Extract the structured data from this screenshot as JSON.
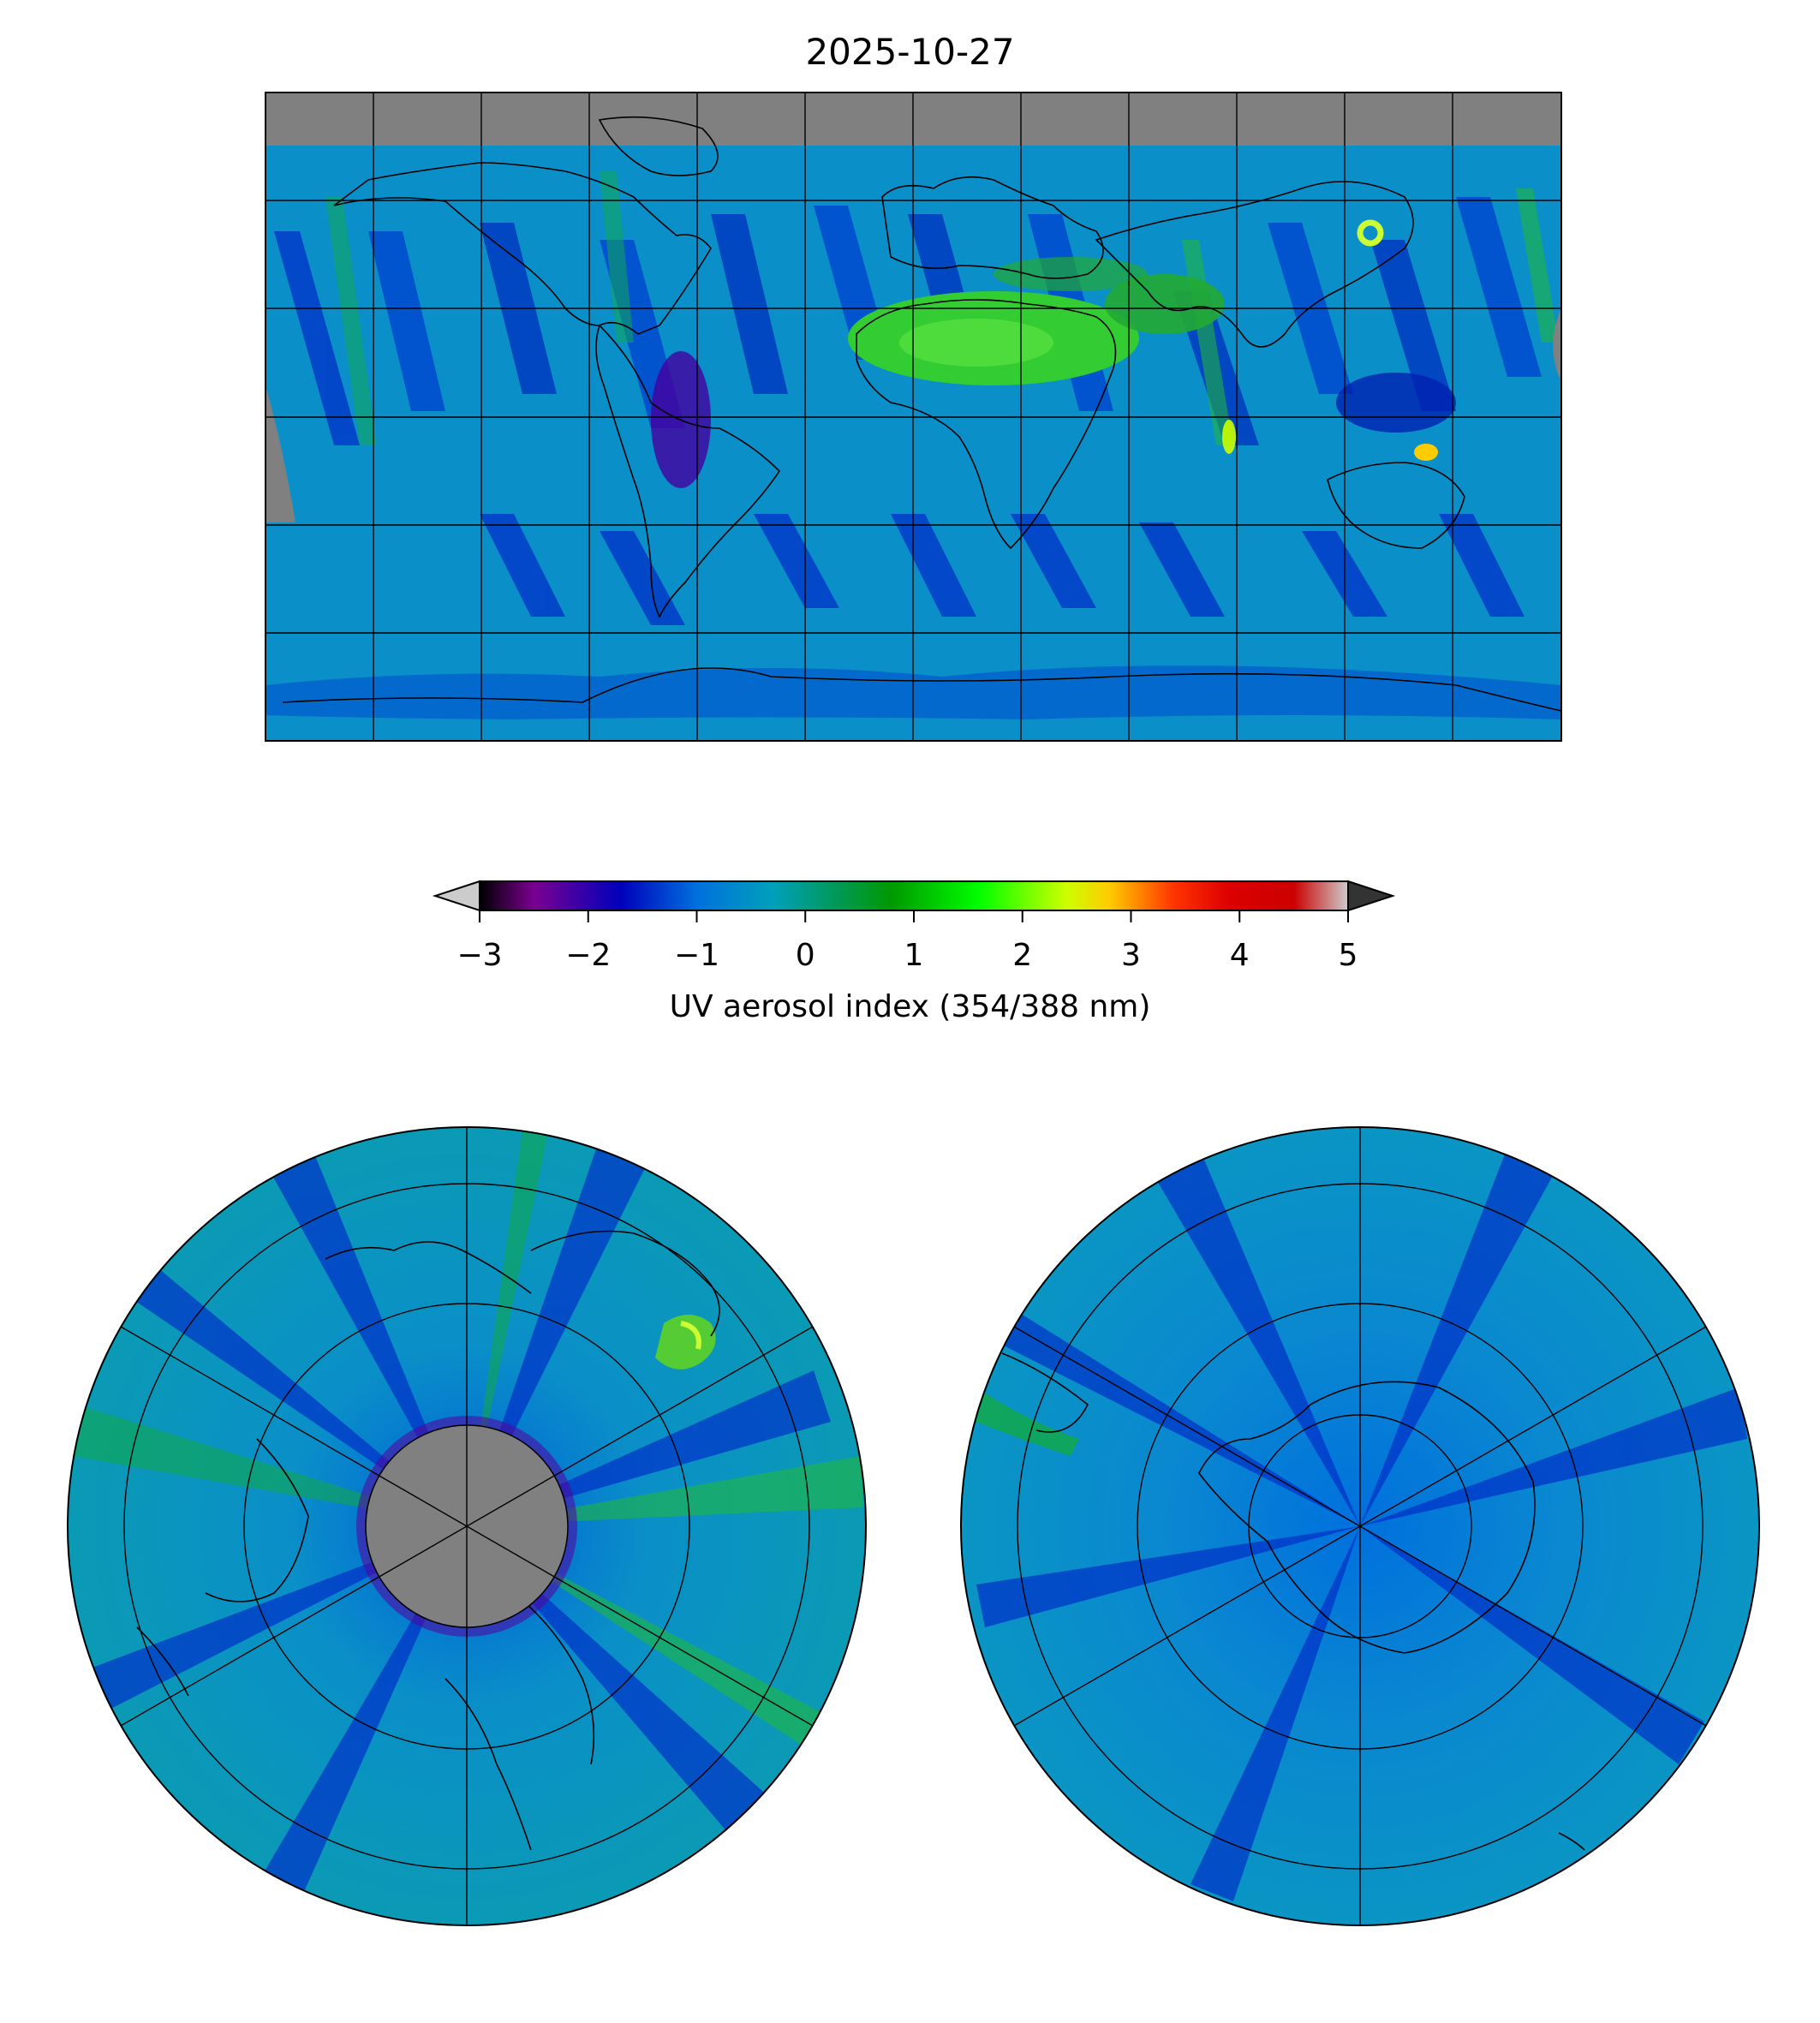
{
  "figure": {
    "title": "2025-10-27"
  },
  "colorbar": {
    "label": "UV aerosol index (354/388 nm)",
    "ticks": [
      "−3",
      "−2",
      "−1",
      "0",
      "1",
      "2",
      "3",
      "4",
      "5"
    ],
    "tick_values": [
      -3,
      -2,
      -1,
      0,
      1,
      2,
      3,
      4,
      5
    ],
    "range": [
      -3,
      5
    ],
    "extend": "both",
    "colormap_stops": [
      {
        "value": -3.0,
        "color": "#000000"
      },
      {
        "value": -2.5,
        "color": "#7a0090"
      },
      {
        "value": -1.7,
        "color": "#0000bb"
      },
      {
        "value": -1.0,
        "color": "#0070dd"
      },
      {
        "value": -0.3,
        "color": "#00a0bb"
      },
      {
        "value": 0.3,
        "color": "#009955"
      },
      {
        "value": 0.8,
        "color": "#009900"
      },
      {
        "value": 1.6,
        "color": "#00ff00"
      },
      {
        "value": 2.4,
        "color": "#ccff00"
      },
      {
        "value": 2.8,
        "color": "#ffcc00"
      },
      {
        "value": 3.4,
        "color": "#ff3300"
      },
      {
        "value": 3.9,
        "color": "#dd0000"
      },
      {
        "value": 4.5,
        "color": "#cc0000"
      },
      {
        "value": 5.0,
        "color": "#cccccc"
      }
    ],
    "under_color": "#cccccc",
    "over_color": "#333333"
  },
  "maps": [
    {
      "name": "global",
      "projection": "plate-carree",
      "gridlines": "30-degree graticule",
      "no_data_color": "#808080"
    },
    {
      "name": "north-polar",
      "projection": "north-polar-stereographic",
      "pole_mask": "gray"
    },
    {
      "name": "south-polar",
      "projection": "south-polar-stereographic"
    }
  ],
  "colors": {
    "background_field": "#0a8fc8",
    "ocean_low": "#0050d0",
    "aerosol_high": "#33cc33",
    "no_data": "#808080"
  }
}
